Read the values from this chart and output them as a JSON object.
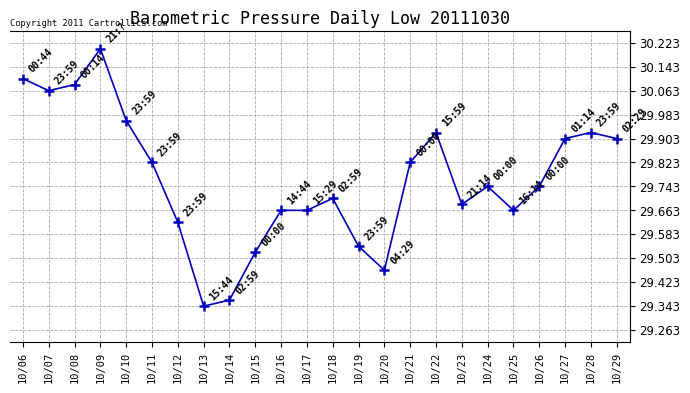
{
  "title": "Barometric Pressure Daily Low 20111030",
  "copyright": "Copyright 2011 Cartrollics.com",
  "x_labels": [
    "10/06",
    "10/07",
    "10/08",
    "10/09",
    "10/10",
    "10/11",
    "10/12",
    "10/13",
    "10/14",
    "10/15",
    "10/16",
    "10/17",
    "10/18",
    "10/19",
    "10/20",
    "10/21",
    "10/22",
    "10/23",
    "10/24",
    "10/25",
    "10/26",
    "10/27",
    "10/28",
    "10/29"
  ],
  "y_values": [
    30.103,
    30.063,
    30.083,
    30.203,
    29.963,
    29.823,
    29.623,
    29.343,
    29.363,
    29.523,
    29.663,
    29.663,
    29.703,
    29.543,
    29.463,
    29.823,
    29.923,
    29.683,
    29.743,
    29.663,
    29.743,
    29.903,
    29.923,
    29.903
  ],
  "annotations": [
    "00:44",
    "23:59",
    "00:14",
    "21:?",
    "23:59",
    "23:59",
    "23:59",
    "15:44",
    "02:59",
    "00:00",
    "14:44",
    "15:29",
    "02:59",
    "23:59",
    "04:29",
    "00:00",
    "15:59",
    "21:14",
    "00:00",
    "16:14",
    "00:00",
    "01:14",
    "23:59",
    "02:29"
  ],
  "line_color": "#0000bb",
  "marker_color": "#0000bb",
  "background_color": "#ffffff",
  "grid_color": "#aaaaaa",
  "ylim_min": 29.223,
  "ylim_max": 30.263,
  "yticks": [
    29.263,
    29.343,
    29.423,
    29.503,
    29.583,
    29.663,
    29.743,
    29.823,
    29.903,
    29.983,
    30.063,
    30.143,
    30.223
  ],
  "title_fontsize": 12,
  "annotation_fontsize": 7,
  "tick_fontsize": 8.5,
  "xlabel_fontsize": 7.5
}
